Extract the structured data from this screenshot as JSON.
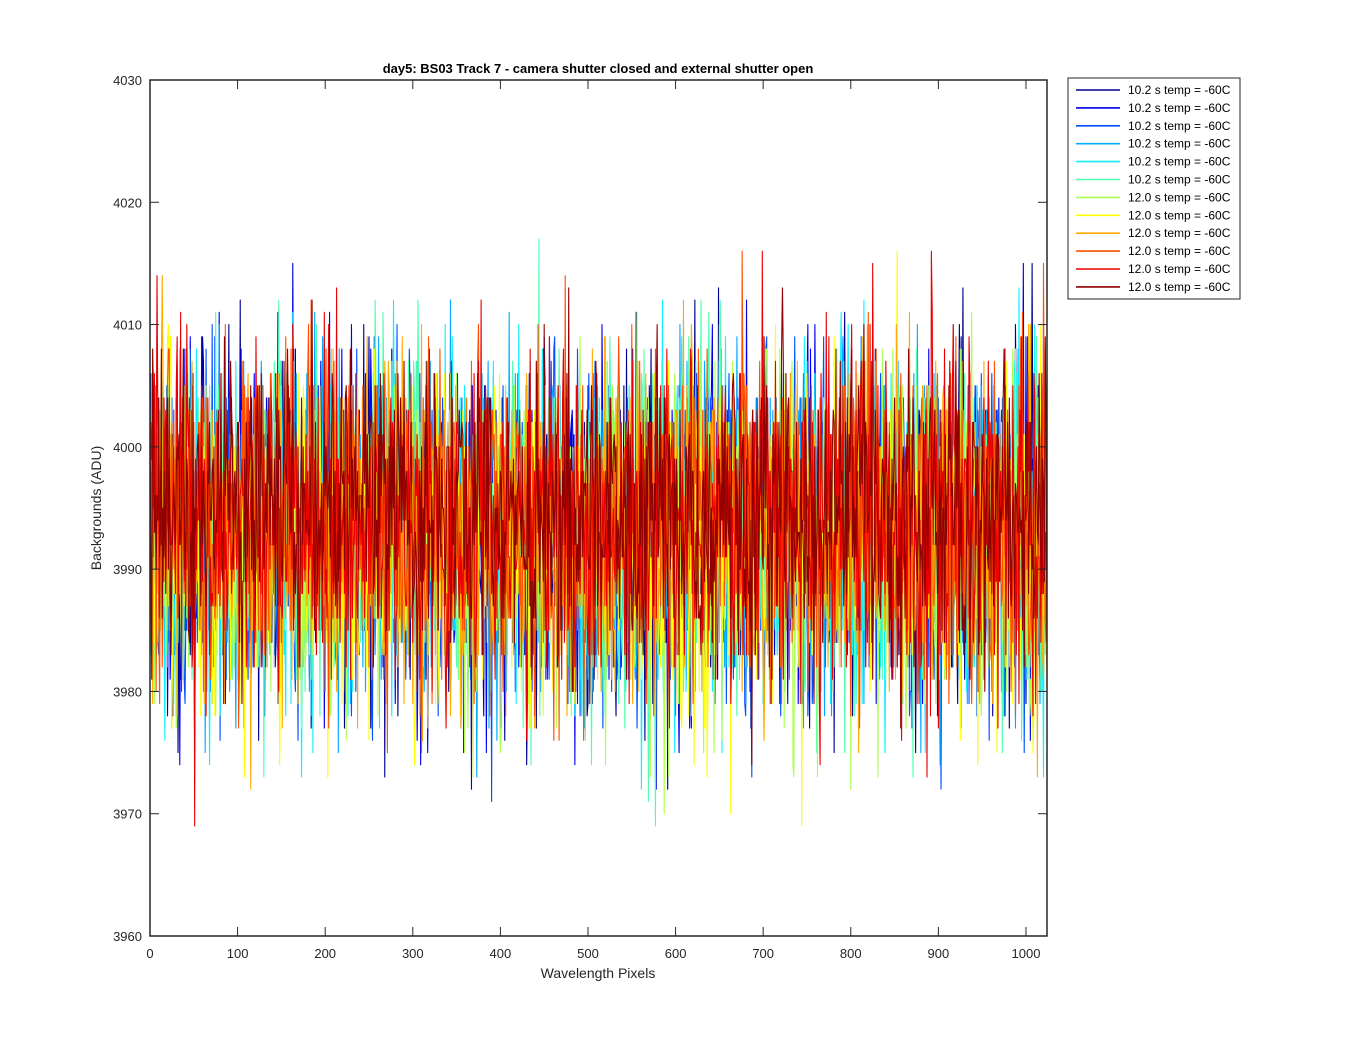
{
  "chart_data": {
    "type": "line",
    "title": "day5: BS03  Track 7 - camera shutter closed and external shutter open",
    "xlabel": "Wavelength Pixels",
    "ylabel": "Backgrounds (ADU)",
    "xlim": [
      0,
      1024
    ],
    "ylim": [
      3960,
      4030
    ],
    "x_ticks": [
      0,
      100,
      200,
      300,
      400,
      500,
      600,
      700,
      800,
      900,
      1000
    ],
    "y_ticks": [
      3960,
      3970,
      3980,
      3990,
      4000,
      4010,
      4020,
      4030
    ],
    "grid": false,
    "legend_position": "outside-top-right",
    "series_note_shape": "noise ~3993 ADU, std ~7",
    "series": [
      {
        "name": "10.2 s temp = -60C",
        "color": "#00008f",
        "center": 3993,
        "spread": 7,
        "seed": 11
      },
      {
        "name": "10.2 s temp = -60C",
        "color": "#0000ea",
        "center": 3993,
        "spread": 7,
        "seed": 23
      },
      {
        "name": "10.2 s temp = -60C",
        "color": "#0050ff",
        "center": 3993,
        "spread": 7,
        "seed": 37
      },
      {
        "name": "10.2 s temp = -60C",
        "color": "#00aaff",
        "center": 3993,
        "spread": 7,
        "seed": 41
      },
      {
        "name": "10.2 s temp = -60C",
        "color": "#0ff0ff",
        "center": 3993,
        "spread": 7,
        "seed": 53
      },
      {
        "name": "10.2 s temp = -60C",
        "color": "#4fffaf",
        "center": 3993,
        "spread": 7,
        "seed": 67
      },
      {
        "name": "12.0 s temp = -60C",
        "color": "#aaff50",
        "center": 3992,
        "spread": 7,
        "seed": 71
      },
      {
        "name": "12.0 s temp = -60C",
        "color": "#ffff00",
        "center": 3992,
        "spread": 7,
        "seed": 83
      },
      {
        "name": "12.0 s temp = -60C",
        "color": "#ffaa00",
        "center": 3993,
        "spread": 7,
        "seed": 97
      },
      {
        "name": "12.0 s temp = -60C",
        "color": "#ff5000",
        "center": 3994,
        "spread": 7,
        "seed": 101
      },
      {
        "name": "12.0 s temp = -60C",
        "color": "#ea0000",
        "center": 3994,
        "spread": 7,
        "seed": 113
      },
      {
        "name": "12.0 s temp = -60C",
        "color": "#8f0000",
        "center": 3995,
        "spread": 6,
        "seed": 127
      }
    ]
  }
}
